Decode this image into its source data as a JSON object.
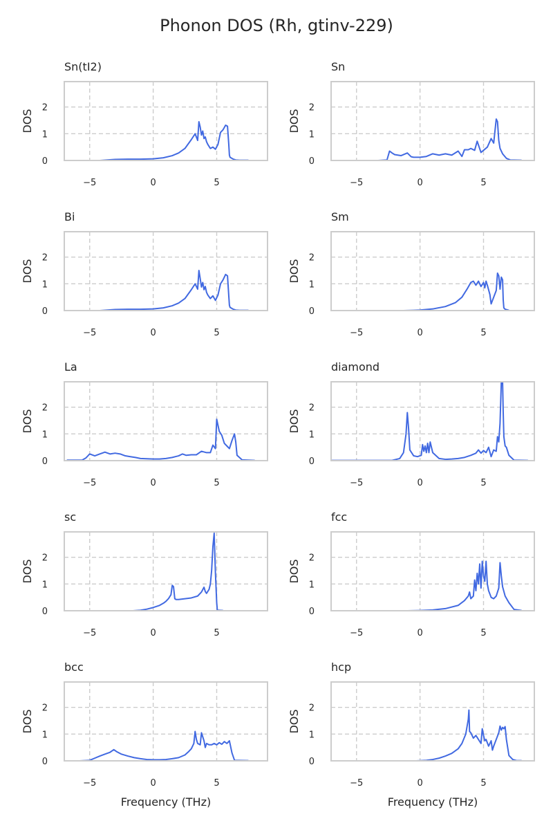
{
  "figure_title": "Phonon DOS (Rh, gtinv-229)",
  "colors": {
    "line": "#4169e1",
    "grid": "#cccccc",
    "text": "#262626"
  },
  "chart_data": [
    {
      "type": "line",
      "title": "Sn(tI2)",
      "ylabel": "DOS",
      "xlabel": "",
      "xlim": [
        -7,
        9
      ],
      "ylim": [
        0,
        2.95
      ],
      "xticks": [
        -5,
        0,
        5
      ],
      "yticks": [
        0,
        1,
        2
      ],
      "grid": true,
      "x": [
        -4.2,
        -3,
        -2,
        -1,
        0,
        0.8,
        1.5,
        2,
        2.5,
        3,
        3.3,
        3.5,
        3.6,
        3.7,
        3.8,
        3.9,
        4.0,
        4.1,
        4.2,
        4.3,
        4.5,
        4.7,
        4.9,
        5.1,
        5.3,
        5.5,
        5.7,
        5.85,
        5.95,
        6.0,
        6.05,
        6.3,
        6.5,
        6.8,
        7.5
      ],
      "y": [
        0,
        0.04,
        0.05,
        0.05,
        0.06,
        0.1,
        0.18,
        0.28,
        0.45,
        0.78,
        1.0,
        0.75,
        1.45,
        1.25,
        0.95,
        1.1,
        0.82,
        0.88,
        0.7,
        0.6,
        0.45,
        0.5,
        0.42,
        0.6,
        1.05,
        1.15,
        1.32,
        1.28,
        0.6,
        0.2,
        0.12,
        0.05,
        0.02,
        0.01,
        0.01
      ]
    },
    {
      "type": "line",
      "title": "Sn",
      "ylabel": "DOS",
      "xlabel": "",
      "xlim": [
        -7,
        9
      ],
      "ylim": [
        0,
        2.95
      ],
      "xticks": [
        -5,
        0,
        5
      ],
      "yticks": [
        0,
        1,
        2
      ],
      "grid": true,
      "x": [
        -3.3,
        -2.6,
        -2.4,
        -2.2,
        -2,
        -1.5,
        -1,
        -0.7,
        -0.5,
        0,
        0.5,
        1,
        1.5,
        2,
        2.5,
        3,
        3.3,
        3.5,
        3.8,
        4,
        4.3,
        4.5,
        4.8,
        5,
        5.3,
        5.6,
        5.8,
        6.0,
        6.1,
        6.2,
        6.3,
        6.5,
        6.8,
        7.1,
        8
      ],
      "y": [
        0,
        0.02,
        0.35,
        0.28,
        0.22,
        0.18,
        0.28,
        0.14,
        0.12,
        0.12,
        0.15,
        0.25,
        0.2,
        0.25,
        0.2,
        0.35,
        0.15,
        0.4,
        0.4,
        0.45,
        0.38,
        0.72,
        0.3,
        0.38,
        0.5,
        0.82,
        0.65,
        1.55,
        1.45,
        0.75,
        0.45,
        0.25,
        0.08,
        0.02,
        0.01
      ]
    },
    {
      "type": "line",
      "title": "Bi",
      "ylabel": "DOS",
      "xlabel": "",
      "xlim": [
        -7,
        9
      ],
      "ylim": [
        0,
        2.95
      ],
      "xticks": [
        -5,
        0,
        5
      ],
      "yticks": [
        0,
        1,
        2
      ],
      "grid": true,
      "x": [
        -4.2,
        -3,
        -2,
        -1,
        0,
        0.8,
        1.5,
        2,
        2.5,
        3,
        3.3,
        3.5,
        3.6,
        3.7,
        3.8,
        3.9,
        4.0,
        4.1,
        4.2,
        4.3,
        4.5,
        4.7,
        4.9,
        5.1,
        5.3,
        5.5,
        5.7,
        5.85,
        5.95,
        6.0,
        6.05,
        6.3,
        6.5,
        6.8,
        7.5
      ],
      "y": [
        0,
        0.04,
        0.05,
        0.05,
        0.06,
        0.1,
        0.18,
        0.28,
        0.45,
        0.78,
        1.0,
        0.8,
        1.5,
        1.2,
        0.88,
        1.05,
        0.78,
        0.9,
        0.68,
        0.58,
        0.45,
        0.55,
        0.38,
        0.58,
        1.0,
        1.15,
        1.35,
        1.3,
        0.55,
        0.2,
        0.12,
        0.05,
        0.02,
        0.01,
        0.01
      ]
    },
    {
      "type": "line",
      "title": "Sm",
      "ylabel": "DOS",
      "xlabel": "",
      "xlim": [
        -7,
        9
      ],
      "ylim": [
        0,
        2.95
      ],
      "xticks": [
        -5,
        0,
        5
      ],
      "yticks": [
        0,
        1,
        2
      ],
      "grid": true,
      "x": [
        -1.3,
        -0.5,
        0,
        1,
        2,
        2.8,
        3.3,
        3.7,
        4.0,
        4.2,
        4.4,
        4.6,
        4.8,
        5.0,
        5.1,
        5.2,
        5.3,
        5.5,
        5.6,
        5.8,
        6.0,
        6.1,
        6.2,
        6.3,
        6.4,
        6.5,
        6.55,
        6.6,
        6.7,
        7.0
      ],
      "y": [
        0,
        0.01,
        0.02,
        0.06,
        0.15,
        0.3,
        0.5,
        0.8,
        1.05,
        1.1,
        0.95,
        1.1,
        0.9,
        1.05,
        0.85,
        1.1,
        0.95,
        0.6,
        0.25,
        0.5,
        0.75,
        1.4,
        1.3,
        0.8,
        1.25,
        1.15,
        0.4,
        0.1,
        0.05,
        0.01
      ]
    },
    {
      "type": "line",
      "title": "La",
      "ylabel": "DOS",
      "xlabel": "",
      "xlim": [
        -7,
        9
      ],
      "ylim": [
        0,
        2.95
      ],
      "xticks": [
        -5,
        0,
        5
      ],
      "yticks": [
        0,
        1,
        2
      ],
      "grid": true,
      "x": [
        -6.8,
        -5.6,
        -5.3,
        -5,
        -4.6,
        -4.2,
        -3.8,
        -3.4,
        -3,
        -2.6,
        -2.2,
        -1.8,
        -1.4,
        -1,
        -0.5,
        0,
        0.5,
        1,
        1.5,
        2,
        2.3,
        2.6,
        3,
        3.4,
        3.8,
        4.2,
        4.5,
        4.7,
        4.9,
        5.0,
        5.2,
        5.4,
        5.6,
        5.8,
        6.0,
        6.2,
        6.4,
        6.5,
        6.6,
        7,
        8
      ],
      "y": [
        0.02,
        0.02,
        0.1,
        0.25,
        0.18,
        0.25,
        0.32,
        0.25,
        0.28,
        0.25,
        0.18,
        0.15,
        0.12,
        0.08,
        0.07,
        0.06,
        0.06,
        0.08,
        0.12,
        0.18,
        0.25,
        0.2,
        0.22,
        0.22,
        0.35,
        0.3,
        0.3,
        0.58,
        0.45,
        1.55,
        1.1,
        0.95,
        0.65,
        0.55,
        0.45,
        0.75,
        1.0,
        0.7,
        0.2,
        0.03,
        0.01
      ]
    },
    {
      "type": "line",
      "title": "diamond",
      "ylabel": "DOS",
      "xlabel": "",
      "xlim": [
        -7,
        9
      ],
      "ylim": [
        0,
        2.95
      ],
      "xticks": [
        -5,
        0,
        5
      ],
      "yticks": [
        0,
        1,
        2
      ],
      "grid": true,
      "x": [
        -7,
        -2.2,
        -1.6,
        -1.3,
        -1.1,
        -1.0,
        -0.9,
        -0.8,
        -0.5,
        -0.2,
        0.1,
        0.2,
        0.3,
        0.4,
        0.5,
        0.6,
        0.7,
        0.8,
        1.0,
        1.5,
        2,
        2.5,
        3,
        3.5,
        4,
        4.4,
        4.6,
        4.8,
        5.0,
        5.2,
        5.4,
        5.6,
        5.8,
        6.0,
        6.1,
        6.2,
        6.3,
        6.4,
        6.5,
        6.55,
        6.6,
        6.7,
        6.8,
        7.0,
        7.4,
        8.5
      ],
      "y": [
        0.01,
        0.01,
        0.08,
        0.3,
        1.0,
        1.8,
        1.2,
        0.4,
        0.18,
        0.15,
        0.2,
        0.6,
        0.35,
        0.55,
        0.3,
        0.65,
        0.3,
        0.7,
        0.3,
        0.08,
        0.05,
        0.06,
        0.08,
        0.12,
        0.2,
        0.28,
        0.4,
        0.28,
        0.38,
        0.3,
        0.5,
        0.15,
        0.4,
        0.35,
        0.9,
        0.7,
        1.4,
        2.95,
        2.95,
        1.8,
        0.9,
        0.55,
        0.5,
        0.2,
        0.02,
        0.01
      ]
    },
    {
      "type": "line",
      "title": "sc",
      "ylabel": "DOS",
      "xlabel": "",
      "xlim": [
        -7,
        9
      ],
      "ylim": [
        0,
        2.95
      ],
      "xticks": [
        -5,
        0,
        5
      ],
      "yticks": [
        0,
        1,
        2
      ],
      "grid": true,
      "x": [
        -1.6,
        -1,
        -0.5,
        0,
        0.5,
        0.8,
        1.0,
        1.2,
        1.4,
        1.5,
        1.6,
        1.7,
        1.8,
        2.0,
        2.5,
        3,
        3.5,
        3.8,
        4.0,
        4.1,
        4.2,
        4.4,
        4.5,
        4.6,
        4.7,
        4.8,
        4.9,
        5.0,
        5.05,
        5.5
      ],
      "y": [
        0,
        0.02,
        0.06,
        0.12,
        0.2,
        0.28,
        0.35,
        0.45,
        0.6,
        0.95,
        0.9,
        0.45,
        0.42,
        0.42,
        0.45,
        0.48,
        0.55,
        0.7,
        0.88,
        0.72,
        0.65,
        0.8,
        1.0,
        1.5,
        2.4,
        2.9,
        1.4,
        0.3,
        0.02,
        0.01
      ]
    },
    {
      "type": "line",
      "title": "fcc",
      "ylabel": "DOS",
      "xlabel": "",
      "xlim": [
        -7,
        9
      ],
      "ylim": [
        0,
        2.95
      ],
      "xticks": [
        -5,
        0,
        5
      ],
      "yticks": [
        0,
        1,
        2
      ],
      "grid": true,
      "x": [
        -1,
        0,
        1,
        2,
        3,
        3.5,
        3.8,
        3.9,
        4.0,
        4.2,
        4.3,
        4.4,
        4.5,
        4.6,
        4.7,
        4.8,
        4.9,
        5.0,
        5.1,
        5.2,
        5.3,
        5.4,
        5.6,
        5.8,
        6.0,
        6.2,
        6.3,
        6.4,
        6.5,
        6.7,
        7.0,
        7.4,
        8
      ],
      "y": [
        0,
        0.01,
        0.03,
        0.08,
        0.2,
        0.38,
        0.55,
        0.7,
        0.45,
        0.55,
        1.15,
        0.75,
        1.4,
        1.0,
        1.75,
        0.85,
        1.85,
        1.3,
        1.1,
        1.85,
        1.0,
        0.75,
        0.5,
        0.45,
        0.55,
        0.85,
        1.8,
        1.3,
        0.9,
        0.55,
        0.3,
        0.05,
        0.01
      ]
    },
    {
      "type": "line",
      "title": "bcc",
      "ylabel": "DOS",
      "xlabel": "Frequency (THz)",
      "xlim": [
        -7,
        9
      ],
      "ylim": [
        0,
        2.95
      ],
      "xticks": [
        -5,
        0,
        5
      ],
      "yticks": [
        0,
        1,
        2
      ],
      "grid": true,
      "x": [
        -5.8,
        -5,
        -4.6,
        -4.2,
        -3.8,
        -3.4,
        -3.1,
        -2.9,
        -2.5,
        -2,
        -1.5,
        -1,
        -0.5,
        0,
        0.5,
        1,
        1.5,
        2,
        2.5,
        2.8,
        3.0,
        3.2,
        3.3,
        3.4,
        3.5,
        3.7,
        3.8,
        4.0,
        4.1,
        4.2,
        4.4,
        4.6,
        4.8,
        5.0,
        5.2,
        5.4,
        5.6,
        5.8,
        6.0,
        6.2,
        6.4,
        7.5
      ],
      "y": [
        0,
        0.02,
        0.1,
        0.18,
        0.25,
        0.32,
        0.42,
        0.35,
        0.25,
        0.18,
        0.12,
        0.08,
        0.05,
        0.04,
        0.04,
        0.05,
        0.08,
        0.12,
        0.22,
        0.35,
        0.45,
        0.65,
        1.1,
        0.8,
        0.65,
        0.6,
        1.05,
        0.75,
        0.5,
        0.65,
        0.6,
        0.6,
        0.65,
        0.6,
        0.68,
        0.62,
        0.72,
        0.65,
        0.75,
        0.3,
        0.02,
        0.01
      ]
    },
    {
      "type": "line",
      "title": "hcp",
      "ylabel": "DOS",
      "xlabel": "Frequency (THz)",
      "xlim": [
        -7,
        9
      ],
      "ylim": [
        0,
        2.95
      ],
      "xticks": [
        -5,
        0,
        5
      ],
      "yticks": [
        0,
        1,
        2
      ],
      "grid": true,
      "x": [
        -0.3,
        0.5,
        1,
        1.5,
        2,
        2.5,
        3,
        3.3,
        3.6,
        3.8,
        3.85,
        3.9,
        4.0,
        4.2,
        4.4,
        4.6,
        4.8,
        4.9,
        5.0,
        5.1,
        5.2,
        5.4,
        5.6,
        5.7,
        5.8,
        6.0,
        6.2,
        6.3,
        6.4,
        6.5,
        6.6,
        6.7,
        6.8,
        7.0,
        7.3,
        7.6,
        8
      ],
      "y": [
        0,
        0.02,
        0.05,
        0.1,
        0.18,
        0.28,
        0.45,
        0.65,
        1.0,
        1.55,
        1.9,
        1.1,
        1.05,
        0.85,
        0.95,
        0.8,
        0.65,
        1.2,
        0.95,
        0.75,
        0.8,
        0.55,
        0.75,
        0.4,
        0.55,
        0.8,
        1.05,
        1.3,
        1.15,
        1.25,
        1.2,
        1.28,
        0.8,
        0.2,
        0.05,
        0.01,
        0.01
      ]
    }
  ]
}
